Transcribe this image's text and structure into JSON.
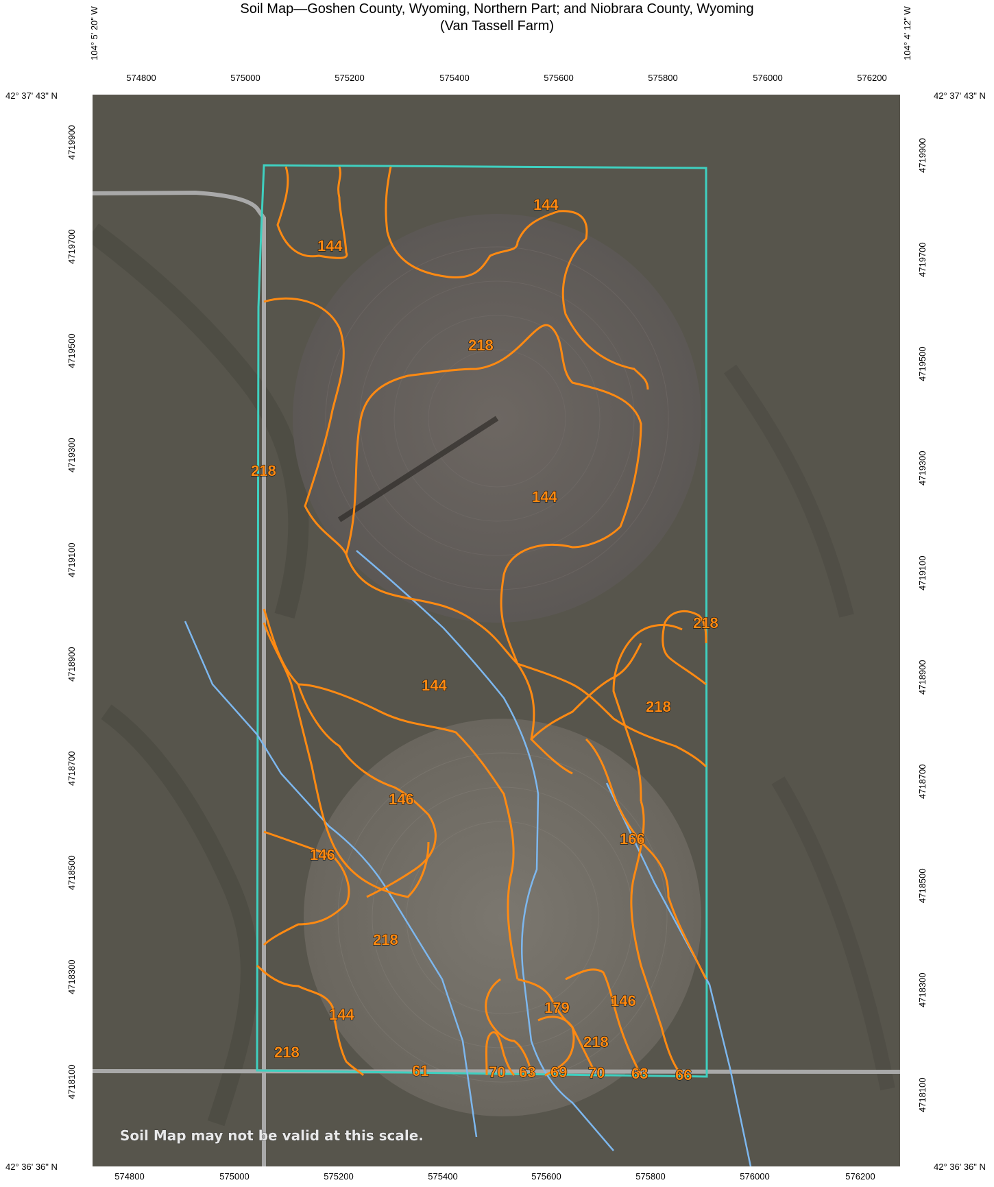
{
  "title": {
    "line1": "Soil Map—Goshen County, Wyoming, Northern Part; and Niobrara County, Wyoming",
    "line2": "(Van Tassell Farm)"
  },
  "coords": {
    "lon_west": "104° 5' 20\" W",
    "lon_east": "104° 4' 12\" W",
    "lat_north": "42° 37' 43\" N",
    "lat_south": "42° 36' 36\" N"
  },
  "easting_ticks": [
    "574800",
    "575000",
    "575200",
    "575400",
    "575600",
    "575800",
    "576000",
    "576200"
  ],
  "northing_ticks": [
    "4719900",
    "4719700",
    "4719500",
    "4719300",
    "4719100",
    "4718900",
    "4718700",
    "4718500",
    "4718300",
    "4718100"
  ],
  "map": {
    "warning": "Soil Map may not be valid at this scale.",
    "colors": {
      "soil_lines": "#ff8a12",
      "boundary": "#3fd0c0",
      "streams": "#7db7ee",
      "roads": "#a9a9a9",
      "imagery": "#5a5750"
    },
    "soil_labels": [
      "144",
      "144",
      "218",
      "218",
      "144",
      "218",
      "144",
      "218",
      "146",
      "166",
      "146",
      "218",
      "179",
      "146",
      "144",
      "218",
      "218",
      "61",
      "70",
      "63",
      "69",
      "70",
      "63",
      "66"
    ]
  }
}
